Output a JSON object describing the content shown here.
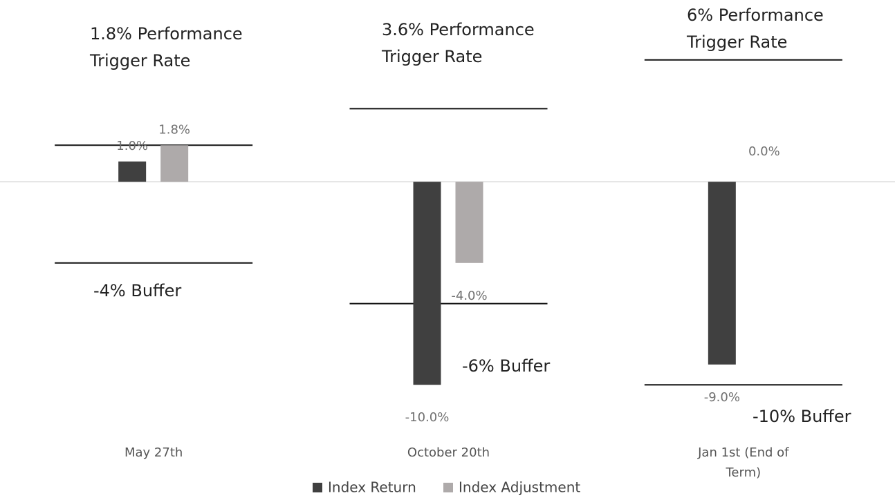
{
  "chart_data": {
    "type": "bar",
    "categories": [
      "May 27th",
      "October 20th",
      "Jan 1st (End of Term)"
    ],
    "series": [
      {
        "name": "Index Return",
        "color": "#404040",
        "values": [
          1.0,
          -10.0,
          -9.0
        ],
        "value_labels": [
          "1.0%",
          "-10.0%",
          "-9.0%"
        ]
      },
      {
        "name": "Index Adjustment",
        "color": "#aeaaaa",
        "values": [
          1.8,
          -4.0,
          0.0
        ],
        "value_labels": [
          "1.8%",
          "-4.0%",
          "0.0%"
        ]
      }
    ],
    "triggers": [
      {
        "value": 1.8,
        "label": [
          "1.8% Performance",
          "Trigger Rate"
        ]
      },
      {
        "value": 3.6,
        "label": [
          "3.6% Performance",
          "Trigger Rate"
        ]
      },
      {
        "value": 6,
        "label": [
          "6% Performance",
          "Trigger Rate"
        ]
      }
    ],
    "buffers": [
      {
        "value": -4,
        "label": "-4% Buffer"
      },
      {
        "value": -6,
        "label": "-6% Buffer"
      },
      {
        "value": -10,
        "label": "-10% Buffer"
      }
    ],
    "ylim": [
      -12,
      8
    ],
    "legend": "bottom"
  }
}
